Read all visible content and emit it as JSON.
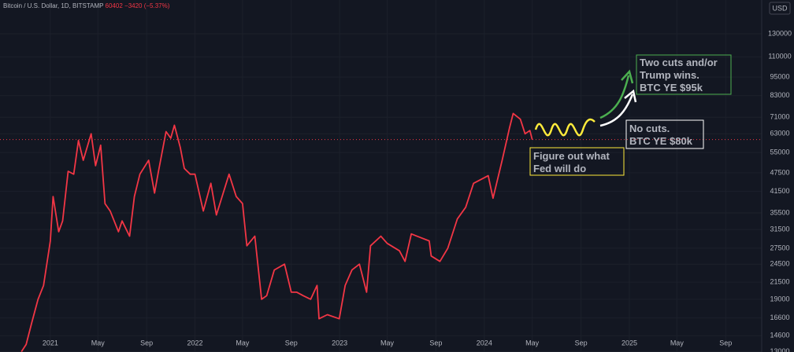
{
  "chart_data": {
    "type": "line",
    "title": "Bitcoin / U.S. Dollar, 1D, BITSTAMP",
    "last": 60402,
    "change": "−3420",
    "change_pct": "(−5.37%)",
    "y_unit": "USD",
    "log_scale": true,
    "grid": true,
    "color": "#f23645",
    "xlim": [
      "2020-08-27",
      "2025-12-01"
    ],
    "ylim": [
      12970,
      166000
    ],
    "yticks": [
      {
        "value": 130000,
        "label": "130000"
      },
      {
        "value": 110000,
        "label": "110000"
      },
      {
        "value": 95000,
        "label": "95000"
      },
      {
        "value": 83000,
        "label": "83000"
      },
      {
        "value": 71000,
        "label": "71000"
      },
      {
        "value": 63000,
        "label": "63000"
      },
      {
        "value": 55000,
        "label": "55000"
      },
      {
        "value": 47500,
        "label": "47500"
      },
      {
        "value": 41500,
        "label": "41500"
      },
      {
        "value": 35500,
        "label": "35500"
      },
      {
        "value": 31500,
        "label": "31500"
      },
      {
        "value": 27500,
        "label": "27500"
      },
      {
        "value": 24500,
        "label": "24500"
      },
      {
        "value": 21500,
        "label": "21500"
      },
      {
        "value": 19000,
        "label": "19000"
      },
      {
        "value": 16600,
        "label": "16600"
      },
      {
        "value": 14600,
        "label": "14600"
      },
      {
        "value": 13000,
        "label": "13000"
      }
    ],
    "xticks": [
      {
        "value": "2021-01-01",
        "label": "2021"
      },
      {
        "value": "2021-05-01",
        "label": "May"
      },
      {
        "value": "2021-09-01",
        "label": "Sep"
      },
      {
        "value": "2022-01-01",
        "label": "2022"
      },
      {
        "value": "2022-05-01",
        "label": "May"
      },
      {
        "value": "2022-09-01",
        "label": "Sep"
      },
      {
        "value": "2023-01-01",
        "label": "2023"
      },
      {
        "value": "2023-05-01",
        "label": "May"
      },
      {
        "value": "2023-09-01",
        "label": "Sep"
      },
      {
        "value": "2024-01-01",
        "label": "2024"
      },
      {
        "value": "2024-05-01",
        "label": "May"
      },
      {
        "value": "2024-09-01",
        "label": "Sep"
      },
      {
        "value": "2025-01-01",
        "label": "2025"
      },
      {
        "value": "2025-05-01",
        "label": "May"
      },
      {
        "value": "2025-09-01",
        "label": "Sep"
      }
    ],
    "x": [
      "2020-10-20",
      "2020-11-01",
      "2020-11-15",
      "2020-12-01",
      "2020-12-15",
      "2021-01-01",
      "2021-01-08",
      "2021-01-22",
      "2021-02-01",
      "2021-02-15",
      "2021-03-01",
      "2021-03-13",
      "2021-03-25",
      "2021-04-14",
      "2021-04-25",
      "2021-05-08",
      "2021-05-19",
      "2021-06-01",
      "2021-06-22",
      "2021-07-01",
      "2021-07-20",
      "2021-08-01",
      "2021-08-15",
      "2021-09-06",
      "2021-09-21",
      "2021-10-01",
      "2021-10-20",
      "2021-11-01",
      "2021-11-10",
      "2021-11-25",
      "2021-12-05",
      "2021-12-20",
      "2022-01-01",
      "2022-01-22",
      "2022-02-10",
      "2022-02-24",
      "2022-03-28",
      "2022-04-15",
      "2022-05-01",
      "2022-05-12",
      "2022-06-01",
      "2022-06-18",
      "2022-07-01",
      "2022-07-20",
      "2022-08-15",
      "2022-09-01",
      "2022-09-15",
      "2022-10-01",
      "2022-10-20",
      "2022-11-05",
      "2022-11-10",
      "2022-12-01",
      "2022-12-31",
      "2023-01-15",
      "2023-02-01",
      "2023-02-20",
      "2023-03-10",
      "2023-03-20",
      "2023-04-15",
      "2023-05-01",
      "2023-06-01",
      "2023-06-15",
      "2023-07-01",
      "2023-07-15",
      "2023-08-15",
      "2023-08-20",
      "2023-09-11",
      "2023-10-01",
      "2023-10-25",
      "2023-11-15",
      "2023-12-05",
      "2024-01-11",
      "2024-01-23",
      "2024-02-15",
      "2024-03-05",
      "2024-03-14",
      "2024-04-01",
      "2024-04-13",
      "2024-04-25",
      "2024-05-01"
    ],
    "values": [
      13000,
      13700,
      16000,
      19000,
      21000,
      29000,
      40000,
      31000,
      33500,
      48000,
      47000,
      60000,
      52000,
      63000,
      50000,
      58000,
      38000,
      36000,
      31000,
      33500,
      30000,
      40000,
      47000,
      52000,
      41000,
      48000,
      64000,
      61000,
      67000,
      57000,
      49000,
      47000,
      47000,
      36000,
      44000,
      35000,
      47000,
      40000,
      38000,
      28000,
      30000,
      19000,
      19500,
      23500,
      24500,
      20000,
      20000,
      19500,
      19000,
      21000,
      16500,
      17000,
      16500,
      21000,
      23500,
      24500,
      20000,
      28000,
      30000,
      28500,
      27000,
      25000,
      30500,
      30000,
      29000,
      26000,
      25000,
      27500,
      34000,
      37000,
      44000,
      46500,
      39500,
      52000,
      66000,
      73000,
      70000,
      63000,
      64500,
      60402
    ],
    "annotations": [
      {
        "lines": [
          "Figure out what",
          "Fed will do"
        ],
        "color": "#ffeb3b"
      },
      {
        "lines": [
          "Two cuts and/or",
          "Trump wins.",
          "BTC YE $95k"
        ],
        "color": "#4caf50"
      },
      {
        "lines": [
          "No cuts.",
          "BTC YE $80k"
        ],
        "color": "#ffffff"
      }
    ]
  }
}
